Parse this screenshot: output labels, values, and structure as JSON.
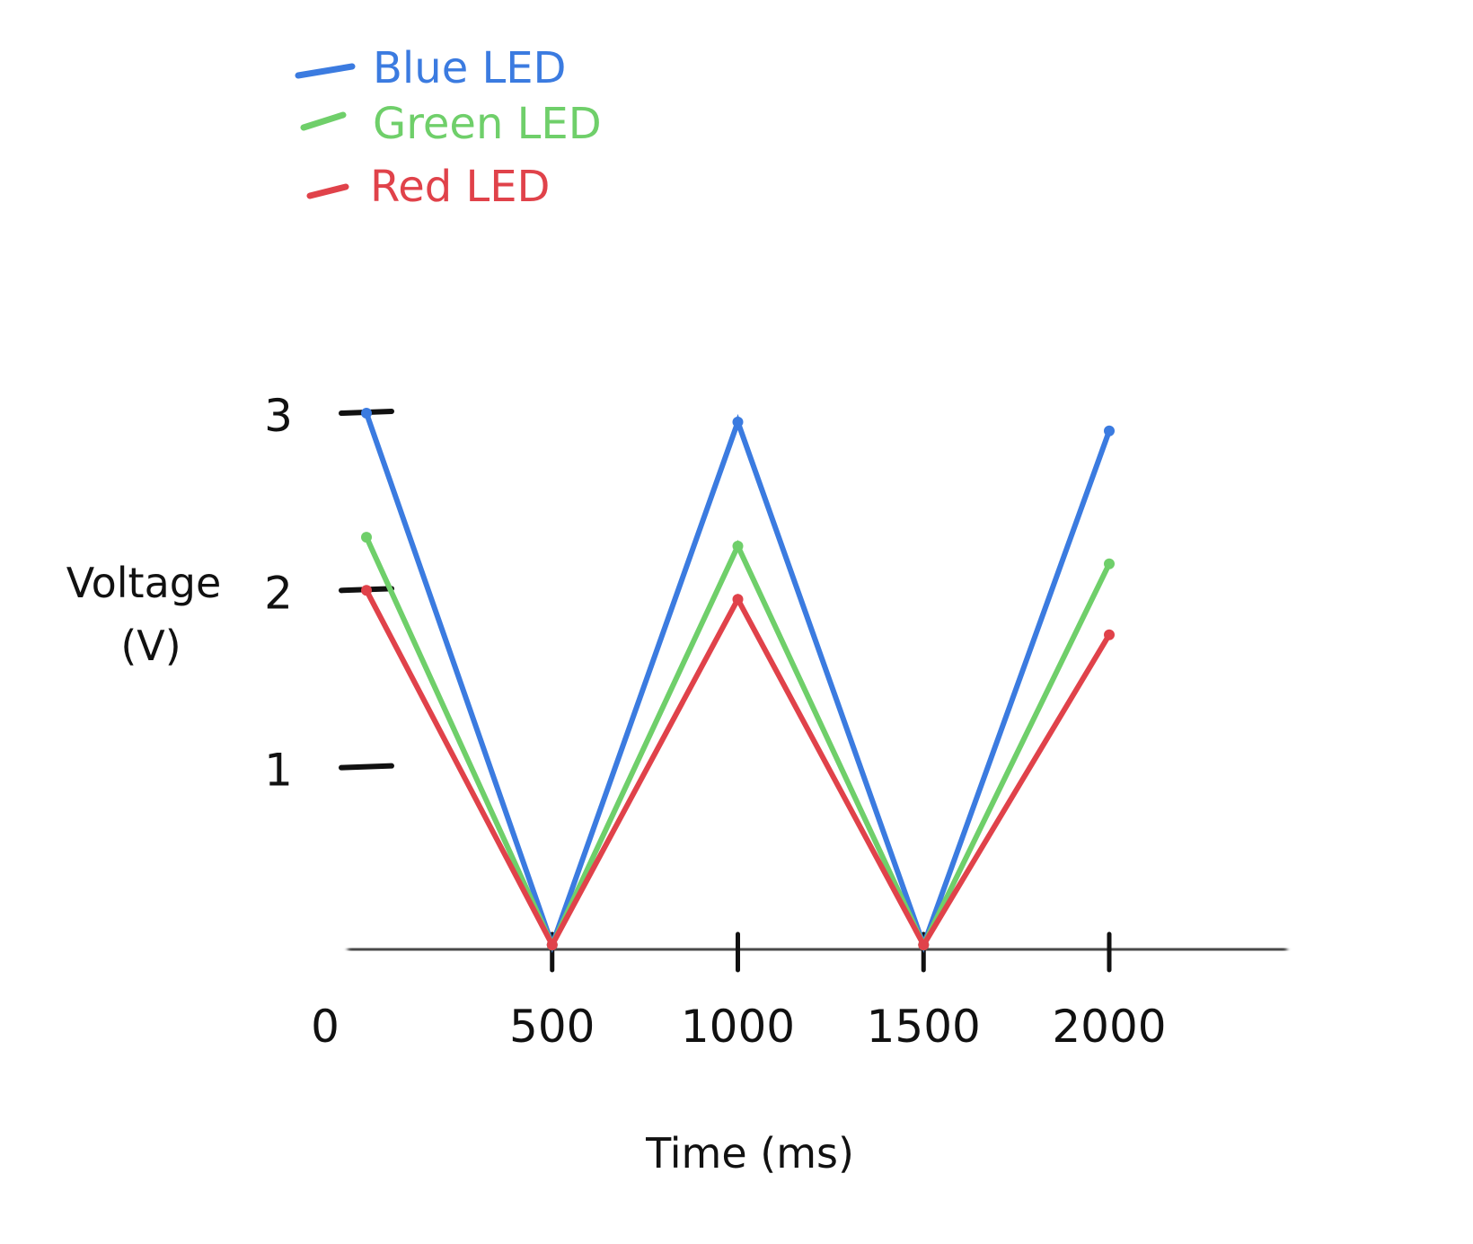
{
  "chart_data": {
    "type": "line",
    "xlabel": "Time (ms)",
    "ylabel_line1": "Voltage",
    "ylabel_line2": "(V)",
    "xlim": [
      0,
      2000
    ],
    "ylim": [
      0,
      3.5
    ],
    "x_ticks": [
      0,
      500,
      1000,
      1500,
      2000
    ],
    "x_tick_labels": [
      "0",
      "500",
      "1000",
      "1500",
      "2000"
    ],
    "y_ticks": [
      1,
      2,
      3
    ],
    "y_tick_labels": [
      "1",
      "2",
      "3"
    ],
    "grid": false,
    "legend_position": "top-left",
    "x": [
      0,
      500,
      1000,
      1500,
      2000
    ],
    "series": [
      {
        "name": "Blue LED",
        "color": "#3b7be0",
        "values": [
          3.0,
          0.0,
          2.95,
          0.0,
          2.9
        ]
      },
      {
        "name": "Green LED",
        "color": "#6fcf6a",
        "values": [
          2.3,
          0.0,
          2.25,
          0.0,
          2.15
        ]
      },
      {
        "name": "Red LED",
        "color": "#e0424a",
        "values": [
          2.0,
          0.0,
          1.95,
          0.0,
          1.75
        ]
      }
    ]
  }
}
